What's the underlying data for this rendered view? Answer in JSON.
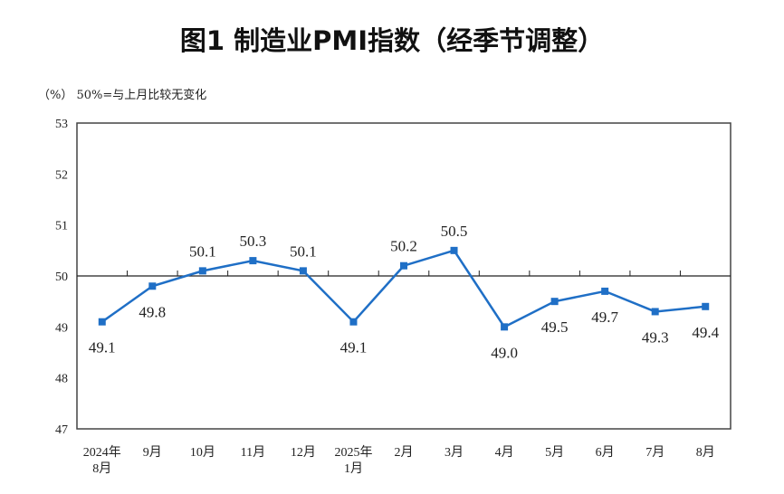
{
  "chart_data": {
    "type": "line",
    "title": "图1  制造业PMI指数（经季节调整）",
    "unit_note": "（%）  50%=与上月比较无变化",
    "categories": [
      [
        "2024年",
        "8月"
      ],
      [
        "9月"
      ],
      [
        "10月"
      ],
      [
        "11月"
      ],
      [
        "12月"
      ],
      [
        "2025年",
        "1月"
      ],
      [
        "2月"
      ],
      [
        "3月"
      ],
      [
        "4月"
      ],
      [
        "5月"
      ],
      [
        "6月"
      ],
      [
        "7月"
      ],
      [
        "8月"
      ]
    ],
    "values": [
      49.1,
      49.8,
      50.1,
      50.3,
      50.1,
      49.1,
      50.2,
      50.5,
      49.0,
      49.5,
      49.7,
      49.3,
      49.4
    ],
    "data_labels": [
      "49.1",
      "49.8",
      "50.1",
      "50.3",
      "50.1",
      "49.1",
      "50.2",
      "50.5",
      "49.0",
      "49.5",
      "49.7",
      "49.3",
      "49.4"
    ],
    "label_position": [
      "below",
      "below",
      "above",
      "above",
      "above",
      "below",
      "above",
      "above",
      "below",
      "below",
      "below",
      "below",
      "below"
    ],
    "ylim": [
      47,
      53
    ],
    "yticks": [
      "47",
      "48",
      "49",
      "50",
      "51",
      "52",
      "53"
    ],
    "reference_line": 50,
    "grid": false,
    "line_color": "#1F6FC6",
    "marker": "square"
  }
}
